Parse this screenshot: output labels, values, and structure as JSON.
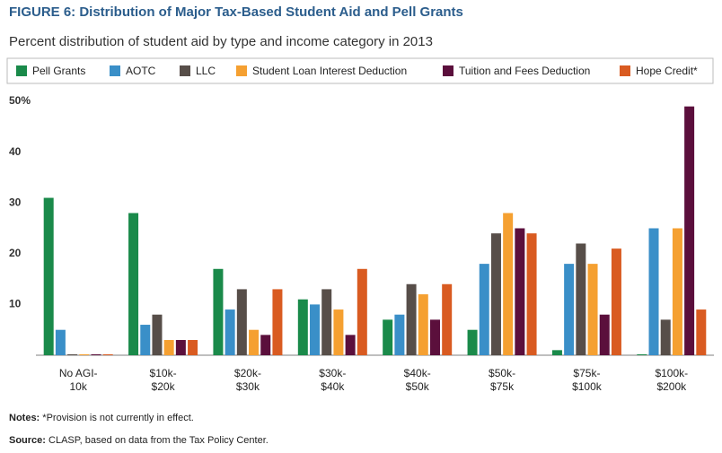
{
  "chart_data": {
    "type": "bar",
    "title": "FIGURE 6: Distribution of Major Tax-Based Student Aid and Pell Grants",
    "subtitle": "Percent distribution of student aid by type and income category in 2013",
    "categories": [
      [
        "No AGI-",
        "10k"
      ],
      [
        "$10k-",
        "$20k"
      ],
      [
        "$20k-",
        "$30k"
      ],
      [
        "$30k-",
        "$40k"
      ],
      [
        "$40k-",
        "$50k"
      ],
      [
        "$50k-",
        "$75k"
      ],
      [
        "$75k-",
        "$100k"
      ],
      [
        "$100k-",
        "$200k"
      ]
    ],
    "series": [
      {
        "name": "Pell Grants",
        "color": "#1a8a4a",
        "values": [
          31,
          28,
          17,
          11,
          7,
          5,
          1,
          0
        ]
      },
      {
        "name": "AOTC",
        "color": "#3a8fc8",
        "values": [
          5,
          6,
          9,
          10,
          8,
          18,
          18,
          25
        ]
      },
      {
        "name": "LLC",
        "color": "#574e49",
        "values": [
          0,
          8,
          13,
          13,
          14,
          24,
          22,
          7
        ]
      },
      {
        "name": "Student Loan Interest Deduction",
        "color": "#f5a031",
        "values": [
          0,
          3,
          5,
          9,
          12,
          28,
          18,
          25
        ]
      },
      {
        "name": "Tuition and Fees Deduction",
        "color": "#5b0f3c",
        "values": [
          0,
          3,
          4,
          4,
          7,
          25,
          8,
          49
        ]
      },
      {
        "name": "Hope Credit*",
        "color": "#d95b21",
        "values": [
          0,
          3,
          13,
          17,
          14,
          24,
          21,
          9
        ]
      }
    ],
    "ylim": [
      0,
      50
    ],
    "yticks": [
      10,
      20,
      30,
      40,
      {
        "value": 50,
        "label": "50%"
      }
    ],
    "grid": false,
    "notes": {
      "label": "Notes:",
      "text": "*Provision is not currently in effect."
    },
    "source": {
      "label": "Source:",
      "text": "CLASP, based on data from the Tax Policy Center."
    }
  }
}
